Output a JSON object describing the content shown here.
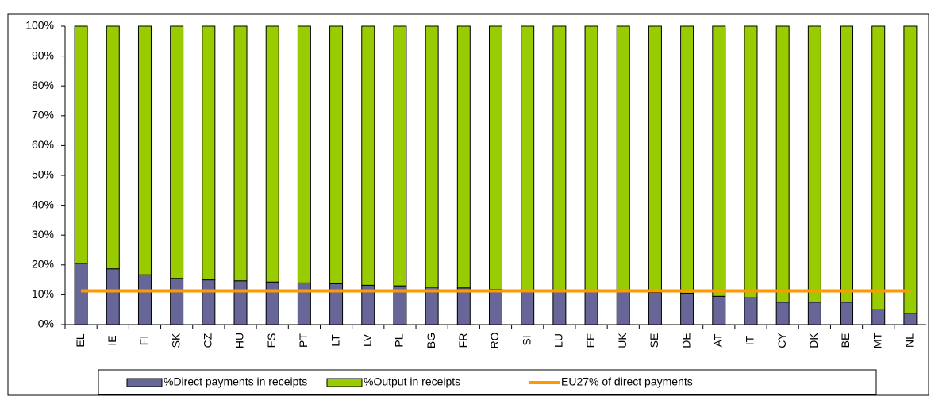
{
  "chart_data": {
    "type": "stacked_bar",
    "categories": [
      "EL",
      "IE",
      "FI",
      "SK",
      "CZ",
      "HU",
      "ES",
      "PT",
      "LT",
      "LV",
      "PL",
      "BG",
      "FR",
      "RO",
      "SI",
      "LU",
      "EE",
      "UK",
      "SE",
      "DE",
      "AT",
      "IT",
      "CY",
      "DK",
      "BE",
      "MT",
      "NL"
    ],
    "series": [
      {
        "name": "%Direct payments in receipts",
        "color": "#666699",
        "values": [
          20.5,
          18.7,
          16.7,
          15.5,
          15,
          14.7,
          14.3,
          14,
          13.7,
          13.2,
          13,
          12.5,
          12.3,
          11.8,
          11.7,
          11.5,
          11.3,
          11,
          10.8,
          10.5,
          9.5,
          9,
          7.5,
          7.5,
          7.5,
          5,
          3.8
        ]
      },
      {
        "name": "%Output in receipts",
        "color": "#99cc00",
        "values": [
          79.5,
          81.3,
          83.3,
          84.5,
          85,
          85.3,
          85.7,
          86,
          86.3,
          86.8,
          87,
          87.5,
          87.7,
          88.2,
          88.3,
          88.5,
          88.7,
          89,
          89.2,
          89.5,
          90.5,
          91,
          92.5,
          92.5,
          92.5,
          95,
          96.2
        ]
      },
      {
        "name": "EU27% of direct payments",
        "color": "#ff9900",
        "kind": "line",
        "values": [
          11.3,
          11.3,
          11.3,
          11.3,
          11.3,
          11.3,
          11.3,
          11.3,
          11.3,
          11.3,
          11.3,
          11.3,
          11.3,
          11.3,
          11.3,
          11.3,
          11.3,
          11.3,
          11.3,
          11.3,
          11.3,
          11.3,
          11.3,
          11.3,
          11.3,
          11.3,
          11.3
        ]
      }
    ],
    "ylim": [
      0,
      100
    ],
    "yticks": [
      {
        "value": 0,
        "label": "0%"
      },
      {
        "value": 10,
        "label": "10%"
      },
      {
        "value": 20,
        "label": "20%"
      },
      {
        "value": 30,
        "label": "30%"
      },
      {
        "value": 40,
        "label": "40%"
      },
      {
        "value": 50,
        "label": "50%"
      },
      {
        "value": 60,
        "label": "60%"
      },
      {
        "value": 70,
        "label": "70%"
      },
      {
        "value": 80,
        "label": "80%"
      },
      {
        "value": 90,
        "label": "90%"
      },
      {
        "value": 100,
        "label": "100%"
      }
    ],
    "legend": "bottom"
  }
}
